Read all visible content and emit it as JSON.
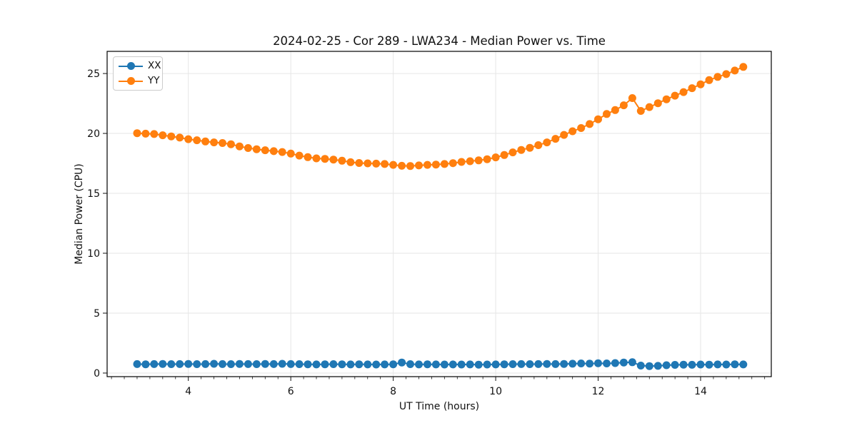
{
  "chart_data": {
    "type": "line",
    "title": "2024-02-25 - Cor 289 - LWA234 - Median Power vs. Time",
    "xlabel": "UT Time (hours)",
    "ylabel": "Median Power (CPU)",
    "xlim": [
      2.415,
      15.38
    ],
    "ylim": [
      -0.3,
      26.85
    ],
    "x_major_ticks": [
      4,
      6,
      8,
      10,
      12,
      14
    ],
    "x_minor_tick_step": 0.25,
    "y_major_ticks": [
      0,
      5,
      10,
      15,
      20,
      25
    ],
    "grid": true,
    "legend_position": "upper-left",
    "background": "#ffffff",
    "grid_color": "#e6e6e6",
    "x": [
      3.0,
      3.167,
      3.333,
      3.5,
      3.667,
      3.833,
      4.0,
      4.167,
      4.333,
      4.5,
      4.667,
      4.833,
      5.0,
      5.167,
      5.333,
      5.5,
      5.667,
      5.833,
      6.0,
      6.167,
      6.333,
      6.5,
      6.667,
      6.833,
      7.0,
      7.167,
      7.333,
      7.5,
      7.667,
      7.833,
      8.0,
      8.167,
      8.333,
      8.5,
      8.667,
      8.833,
      9.0,
      9.167,
      9.333,
      9.5,
      9.667,
      9.833,
      10.0,
      10.167,
      10.333,
      10.5,
      10.667,
      10.833,
      11.0,
      11.167,
      11.333,
      11.5,
      11.667,
      11.833,
      12.0,
      12.167,
      12.333,
      12.5,
      12.667,
      12.833,
      13.0,
      13.167,
      13.333,
      13.5,
      13.667,
      13.833,
      14.0,
      14.167,
      14.333,
      14.5,
      14.667,
      14.833
    ],
    "series": [
      {
        "name": "XX",
        "color": "#1f77b4",
        "values": [
          0.75,
          0.73,
          0.75,
          0.76,
          0.74,
          0.75,
          0.76,
          0.74,
          0.75,
          0.77,
          0.75,
          0.74,
          0.76,
          0.75,
          0.74,
          0.76,
          0.75,
          0.77,
          0.75,
          0.74,
          0.73,
          0.72,
          0.73,
          0.74,
          0.73,
          0.72,
          0.73,
          0.72,
          0.71,
          0.72,
          0.73,
          0.88,
          0.74,
          0.72,
          0.73,
          0.72,
          0.71,
          0.72,
          0.71,
          0.72,
          0.7,
          0.71,
          0.72,
          0.73,
          0.74,
          0.75,
          0.74,
          0.75,
          0.76,
          0.75,
          0.76,
          0.78,
          0.8,
          0.79,
          0.82,
          0.8,
          0.83,
          0.88,
          0.9,
          0.62,
          0.58,
          0.6,
          0.65,
          0.68,
          0.7,
          0.69,
          0.71,
          0.7,
          0.72,
          0.71,
          0.73,
          0.72
        ]
      },
      {
        "name": "YY",
        "color": "#ff7f0e",
        "values": [
          20.02,
          19.98,
          19.95,
          19.85,
          19.75,
          19.65,
          19.52,
          19.43,
          19.33,
          19.25,
          19.2,
          19.1,
          18.92,
          18.78,
          18.68,
          18.6,
          18.52,
          18.45,
          18.32,
          18.15,
          18.02,
          17.92,
          17.88,
          17.82,
          17.72,
          17.6,
          17.53,
          17.5,
          17.48,
          17.45,
          17.38,
          17.3,
          17.28,
          17.33,
          17.38,
          17.4,
          17.45,
          17.52,
          17.62,
          17.68,
          17.75,
          17.85,
          18.0,
          18.2,
          18.42,
          18.62,
          18.8,
          19.02,
          19.25,
          19.55,
          19.88,
          20.18,
          20.45,
          20.78,
          21.18,
          21.62,
          21.95,
          22.35,
          22.95,
          21.88,
          22.2,
          22.52,
          22.85,
          23.15,
          23.45,
          23.78,
          24.1,
          24.45,
          24.72,
          24.95,
          25.25,
          25.55
        ]
      }
    ]
  }
}
